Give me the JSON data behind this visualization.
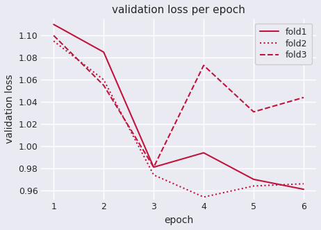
{
  "title": "validation loss per epoch",
  "xlabel": "epoch",
  "ylabel": "validation loss",
  "epochs": [
    1,
    2,
    3,
    4,
    5,
    6
  ],
  "fold1": [
    1.11,
    1.085,
    0.981,
    0.994,
    0.97,
    0.961
  ],
  "fold2": [
    1.095,
    1.06,
    0.974,
    0.954,
    0.964,
    0.966
  ],
  "fold3": [
    1.1,
    1.055,
    0.981,
    1.073,
    1.031,
    1.044
  ],
  "fold1_label": "fold1",
  "fold2_label": "fold2",
  "fold3_label": "fold3",
  "line_color": "#c0143c",
  "axes_background_color": "#eaeaf2",
  "figure_background_color": "#eaeaf2",
  "grid_color": "#ffffff",
  "ylim": [
    0.952,
    1.115
  ],
  "xlim": [
    0.75,
    6.25
  ],
  "yticks": [
    0.96,
    0.98,
    1.0,
    1.02,
    1.04,
    1.06,
    1.08,
    1.1
  ],
  "title_fontsize": 11,
  "label_fontsize": 10,
  "tick_fontsize": 9,
  "legend_fontsize": 9,
  "linewidth": 1.5
}
